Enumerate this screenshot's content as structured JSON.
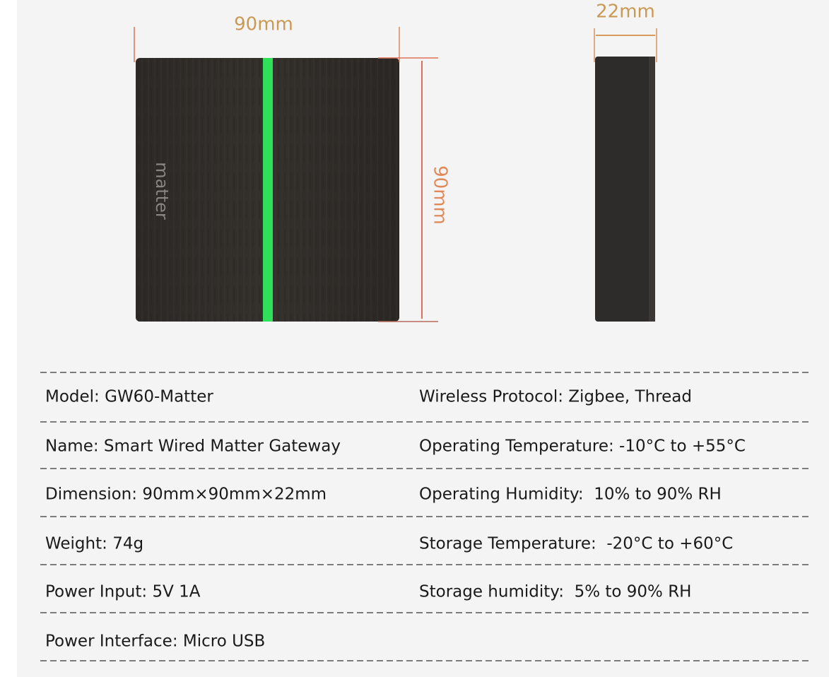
{
  "dimensions": {
    "front_width": "90mm",
    "front_height": "90mm",
    "side_depth": "22mm"
  },
  "device": {
    "logo": "matter"
  },
  "specs": {
    "rows": [
      [
        "Model: GW60-Matter",
        "Wireless Protocol: Zigbee, Thread"
      ],
      [
        "Name: Smart Wired Matter Gateway",
        "Operating Temperature: -10°C to +55°C"
      ],
      [
        "Dimension: 90mm×90mm×22mm",
        "Operating Humidity:  10% to 90% RH"
      ],
      [
        "Weight: 74g",
        "Storage Temperature:  -20°C to +60°C"
      ],
      [
        "Power Input: 5V 1A",
        "Storage humidity:  5% to 90% RH"
      ],
      [
        "Power Interface: Micro USB"
      ]
    ]
  }
}
